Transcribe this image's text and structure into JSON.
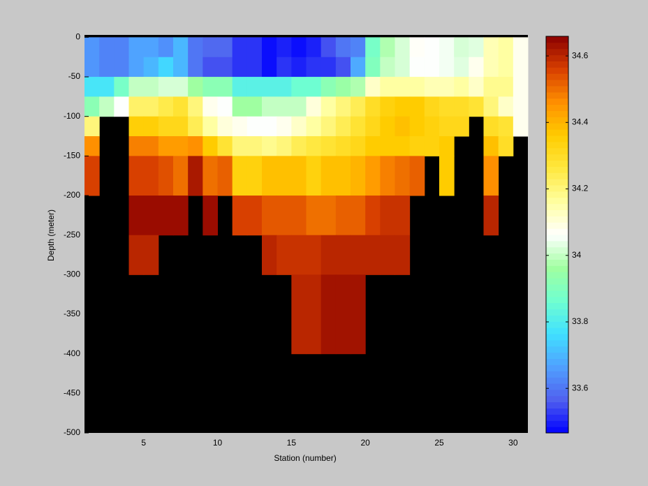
{
  "chart_data": {
    "type": "heatmap",
    "xlabel": "Station (number)",
    "ylabel": "Depth (meter)",
    "x": [
      1,
      2,
      3,
      4,
      5,
      6,
      7,
      8,
      9,
      10,
      11,
      12,
      13,
      14,
      15,
      16,
      17,
      18,
      19,
      20,
      21,
      22,
      23,
      24,
      25,
      26,
      27,
      28,
      29,
      30,
      31
    ],
    "y": [
      0,
      -25,
      -50,
      -75,
      -100,
      -125,
      -150,
      -200,
      -250,
      -300,
      -400,
      -500
    ],
    "values": [
      [
        33.65,
        33.62,
        33.62,
        33.67,
        33.67,
        33.64,
        33.7,
        33.6,
        33.58,
        33.58,
        33.52,
        33.52,
        33.48,
        33.5,
        33.48,
        33.5,
        33.55,
        33.6,
        33.62,
        33.88,
        33.98,
        34.02,
        34.07,
        34.06,
        34.05,
        34.02,
        34.03,
        34.14,
        34.16,
        34.08
      ],
      [
        33.65,
        33.62,
        33.62,
        33.67,
        33.7,
        33.75,
        33.7,
        33.6,
        33.55,
        33.55,
        33.52,
        33.52,
        33.48,
        33.52,
        33.5,
        33.52,
        33.52,
        33.55,
        33.68,
        33.9,
        34.0,
        34.02,
        34.06,
        34.06,
        34.05,
        34.03,
        34.08,
        34.14,
        34.16,
        34.08
      ],
      [
        33.78,
        33.78,
        33.88,
        34.0,
        34.0,
        34.02,
        34.02,
        33.96,
        33.92,
        33.92,
        33.82,
        33.82,
        33.82,
        33.82,
        33.86,
        33.86,
        33.92,
        33.95,
        33.98,
        34.12,
        34.16,
        34.16,
        34.16,
        34.14,
        34.14,
        34.16,
        34.12,
        34.18,
        34.18,
        34.08
      ],
      [
        33.92,
        34.0,
        34.06,
        34.22,
        34.22,
        34.25,
        34.28,
        34.2,
        34.08,
        34.06,
        33.96,
        33.96,
        34.0,
        34.0,
        34.0,
        34.1,
        34.16,
        34.2,
        34.24,
        34.3,
        34.34,
        34.36,
        34.36,
        34.32,
        34.3,
        34.3,
        34.28,
        34.2,
        34.12,
        34.08
      ],
      [
        34.2,
        null,
        null,
        34.35,
        34.35,
        34.32,
        34.32,
        34.24,
        34.16,
        34.1,
        34.08,
        34.06,
        34.06,
        34.08,
        34.12,
        34.16,
        34.2,
        34.24,
        34.28,
        34.32,
        34.36,
        34.38,
        34.36,
        34.34,
        34.32,
        34.32,
        null,
        34.3,
        34.28,
        34.08
      ],
      [
        34.46,
        null,
        null,
        34.48,
        34.48,
        34.44,
        34.44,
        34.46,
        34.36,
        34.28,
        34.2,
        34.2,
        34.18,
        34.2,
        34.24,
        34.26,
        34.28,
        34.3,
        34.32,
        34.36,
        34.36,
        34.36,
        34.34,
        34.34,
        34.36,
        null,
        null,
        34.38,
        34.3,
        null
      ],
      [
        34.56,
        null,
        null,
        34.56,
        34.56,
        34.54,
        34.5,
        34.62,
        34.5,
        34.52,
        34.34,
        34.34,
        34.38,
        34.38,
        34.38,
        34.34,
        34.38,
        34.38,
        34.4,
        34.44,
        34.48,
        34.5,
        34.52,
        null,
        34.36,
        null,
        null,
        34.46,
        null,
        null
      ],
      [
        null,
        null,
        null,
        34.64,
        34.64,
        34.64,
        34.64,
        null,
        34.64,
        null,
        34.56,
        34.56,
        34.53,
        34.53,
        34.53,
        34.5,
        34.5,
        34.52,
        34.52,
        34.56,
        34.58,
        34.58,
        null,
        null,
        null,
        null,
        null,
        34.6,
        null,
        null
      ],
      [
        null,
        null,
        null,
        34.6,
        34.6,
        null,
        null,
        null,
        null,
        null,
        null,
        null,
        34.6,
        34.58,
        34.58,
        34.58,
        34.6,
        34.6,
        34.6,
        34.6,
        34.6,
        34.6,
        null,
        null,
        null,
        null,
        null,
        null,
        null,
        null
      ],
      [
        null,
        null,
        null,
        null,
        null,
        null,
        null,
        null,
        null,
        null,
        null,
        null,
        null,
        null,
        34.6,
        34.6,
        34.63,
        34.63,
        34.63,
        null,
        null,
        null,
        null,
        null,
        null,
        null,
        null,
        null,
        null,
        null
      ],
      [
        null,
        null,
        null,
        null,
        null,
        null,
        null,
        null,
        null,
        null,
        null,
        null,
        null,
        null,
        null,
        null,
        null,
        null,
        null,
        null,
        null,
        null,
        null,
        null,
        null,
        null,
        null,
        null,
        null,
        null
      ]
    ],
    "xlim": [
      1,
      31
    ],
    "xticks": [
      5,
      10,
      15,
      20,
      25,
      30
    ],
    "ylim": [
      -500,
      3
    ],
    "yticks": [
      0,
      -50,
      -100,
      -150,
      -200,
      -250,
      -300,
      -350,
      -400,
      -450,
      -500
    ],
    "clim": [
      33.466,
      34.659
    ],
    "cticks": [
      33.6,
      33.8,
      34,
      34.2,
      34.4,
      34.6
    ],
    "colormap": [
      "#0000ff",
      "#5060ee",
      "#50a0ff",
      "#40e0ff",
      "#70ffd0",
      "#a0ffa0",
      "#ffffff",
      "#ffffa0",
      "#ffe840",
      "#ffcc00",
      "#ff9000",
      "#d84000",
      "#8b0000"
    ],
    "nan_color": "#000000"
  }
}
